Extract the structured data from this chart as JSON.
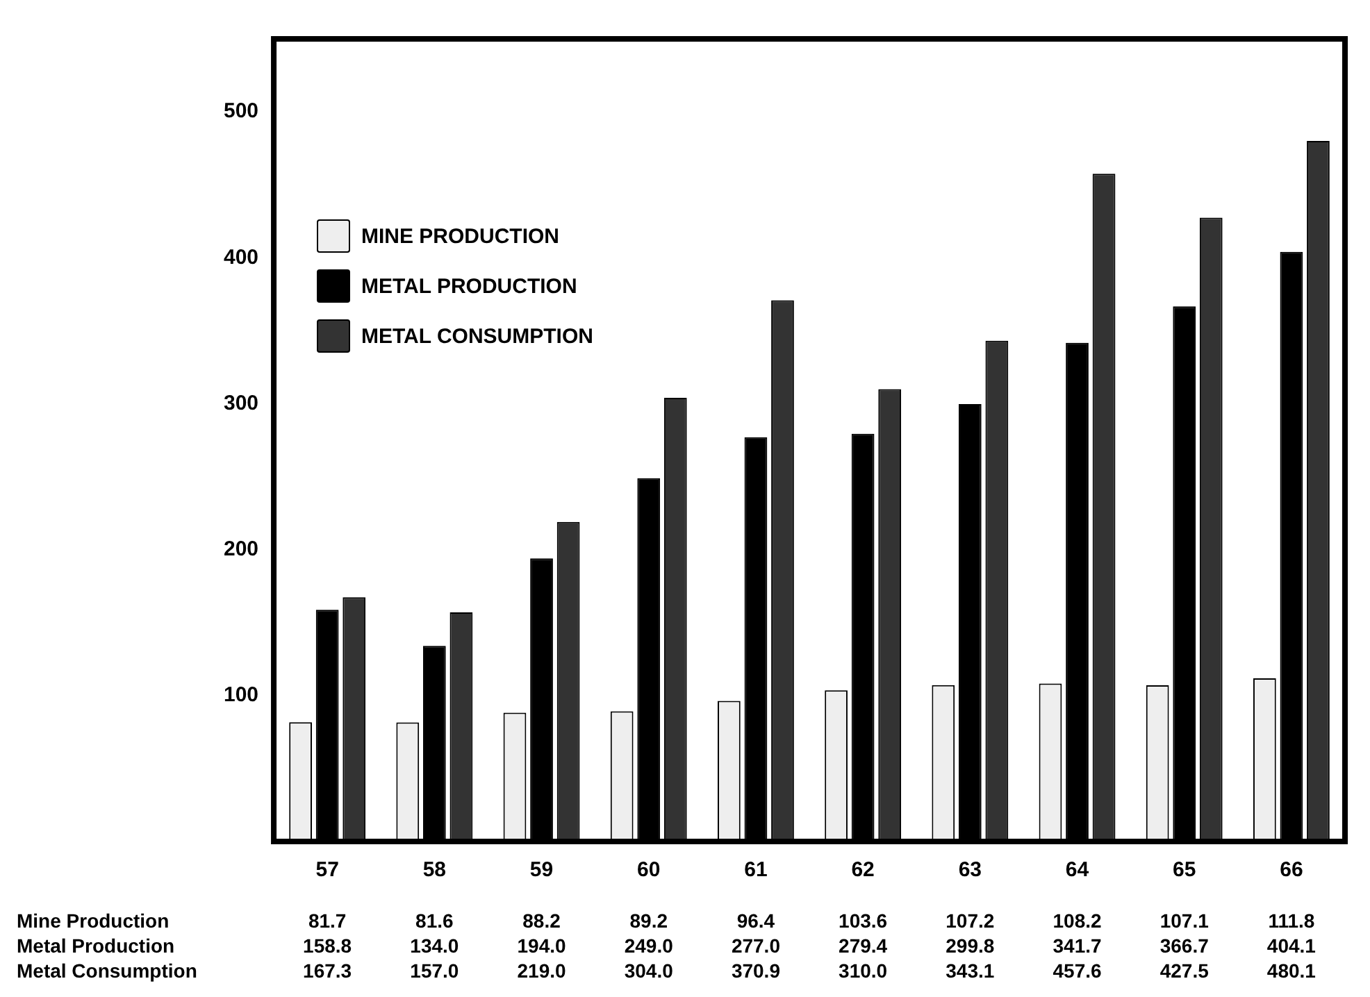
{
  "chart_data": {
    "type": "bar",
    "categories": [
      "57",
      "58",
      "59",
      "60",
      "61",
      "62",
      "63",
      "64",
      "65",
      "66"
    ],
    "series": [
      {
        "name": "MINE PRODUCTION",
        "color": "#eeeeee",
        "values": [
          81.7,
          81.6,
          88.2,
          89.2,
          96.4,
          103.6,
          107.2,
          108.2,
          107.1,
          111.8
        ],
        "value_labels": [
          "81.7",
          "81.6",
          "88.2",
          "89.2",
          "96.4",
          "103.6",
          "107.2",
          "108.2",
          "107.1",
          "111.8"
        ]
      },
      {
        "name": "METAL PRODUCTION",
        "color": "#000000",
        "values": [
          158.8,
          134.0,
          194.0,
          249.0,
          277.0,
          279.4,
          299.8,
          341.7,
          366.7,
          404.1
        ],
        "value_labels": [
          "158.8",
          "134.0",
          "194.0",
          "249.0",
          "277.0",
          "279.4",
          "299.8",
          "341.7",
          "366.7",
          "404.1"
        ]
      },
      {
        "name": "METAL CONSUMPTION",
        "color": "#333333",
        "values": [
          167.3,
          157.0,
          219.0,
          304.0,
          370.9,
          310.0,
          343.1,
          457.6,
          427.5,
          480.1
        ],
        "value_labels": [
          "167.3",
          "157.0",
          "219.0",
          "304.0",
          "370.9",
          "310.0",
          "343.1",
          "457.6",
          "427.5",
          "480.1"
        ]
      }
    ],
    "annotations": [
      "Mine Production",
      "Metal Production",
      "Metal Consumption"
    ],
    "ylim": [
      0,
      550
    ],
    "yticks": [
      100,
      200,
      300,
      400,
      500
    ],
    "legend": "top left"
  }
}
